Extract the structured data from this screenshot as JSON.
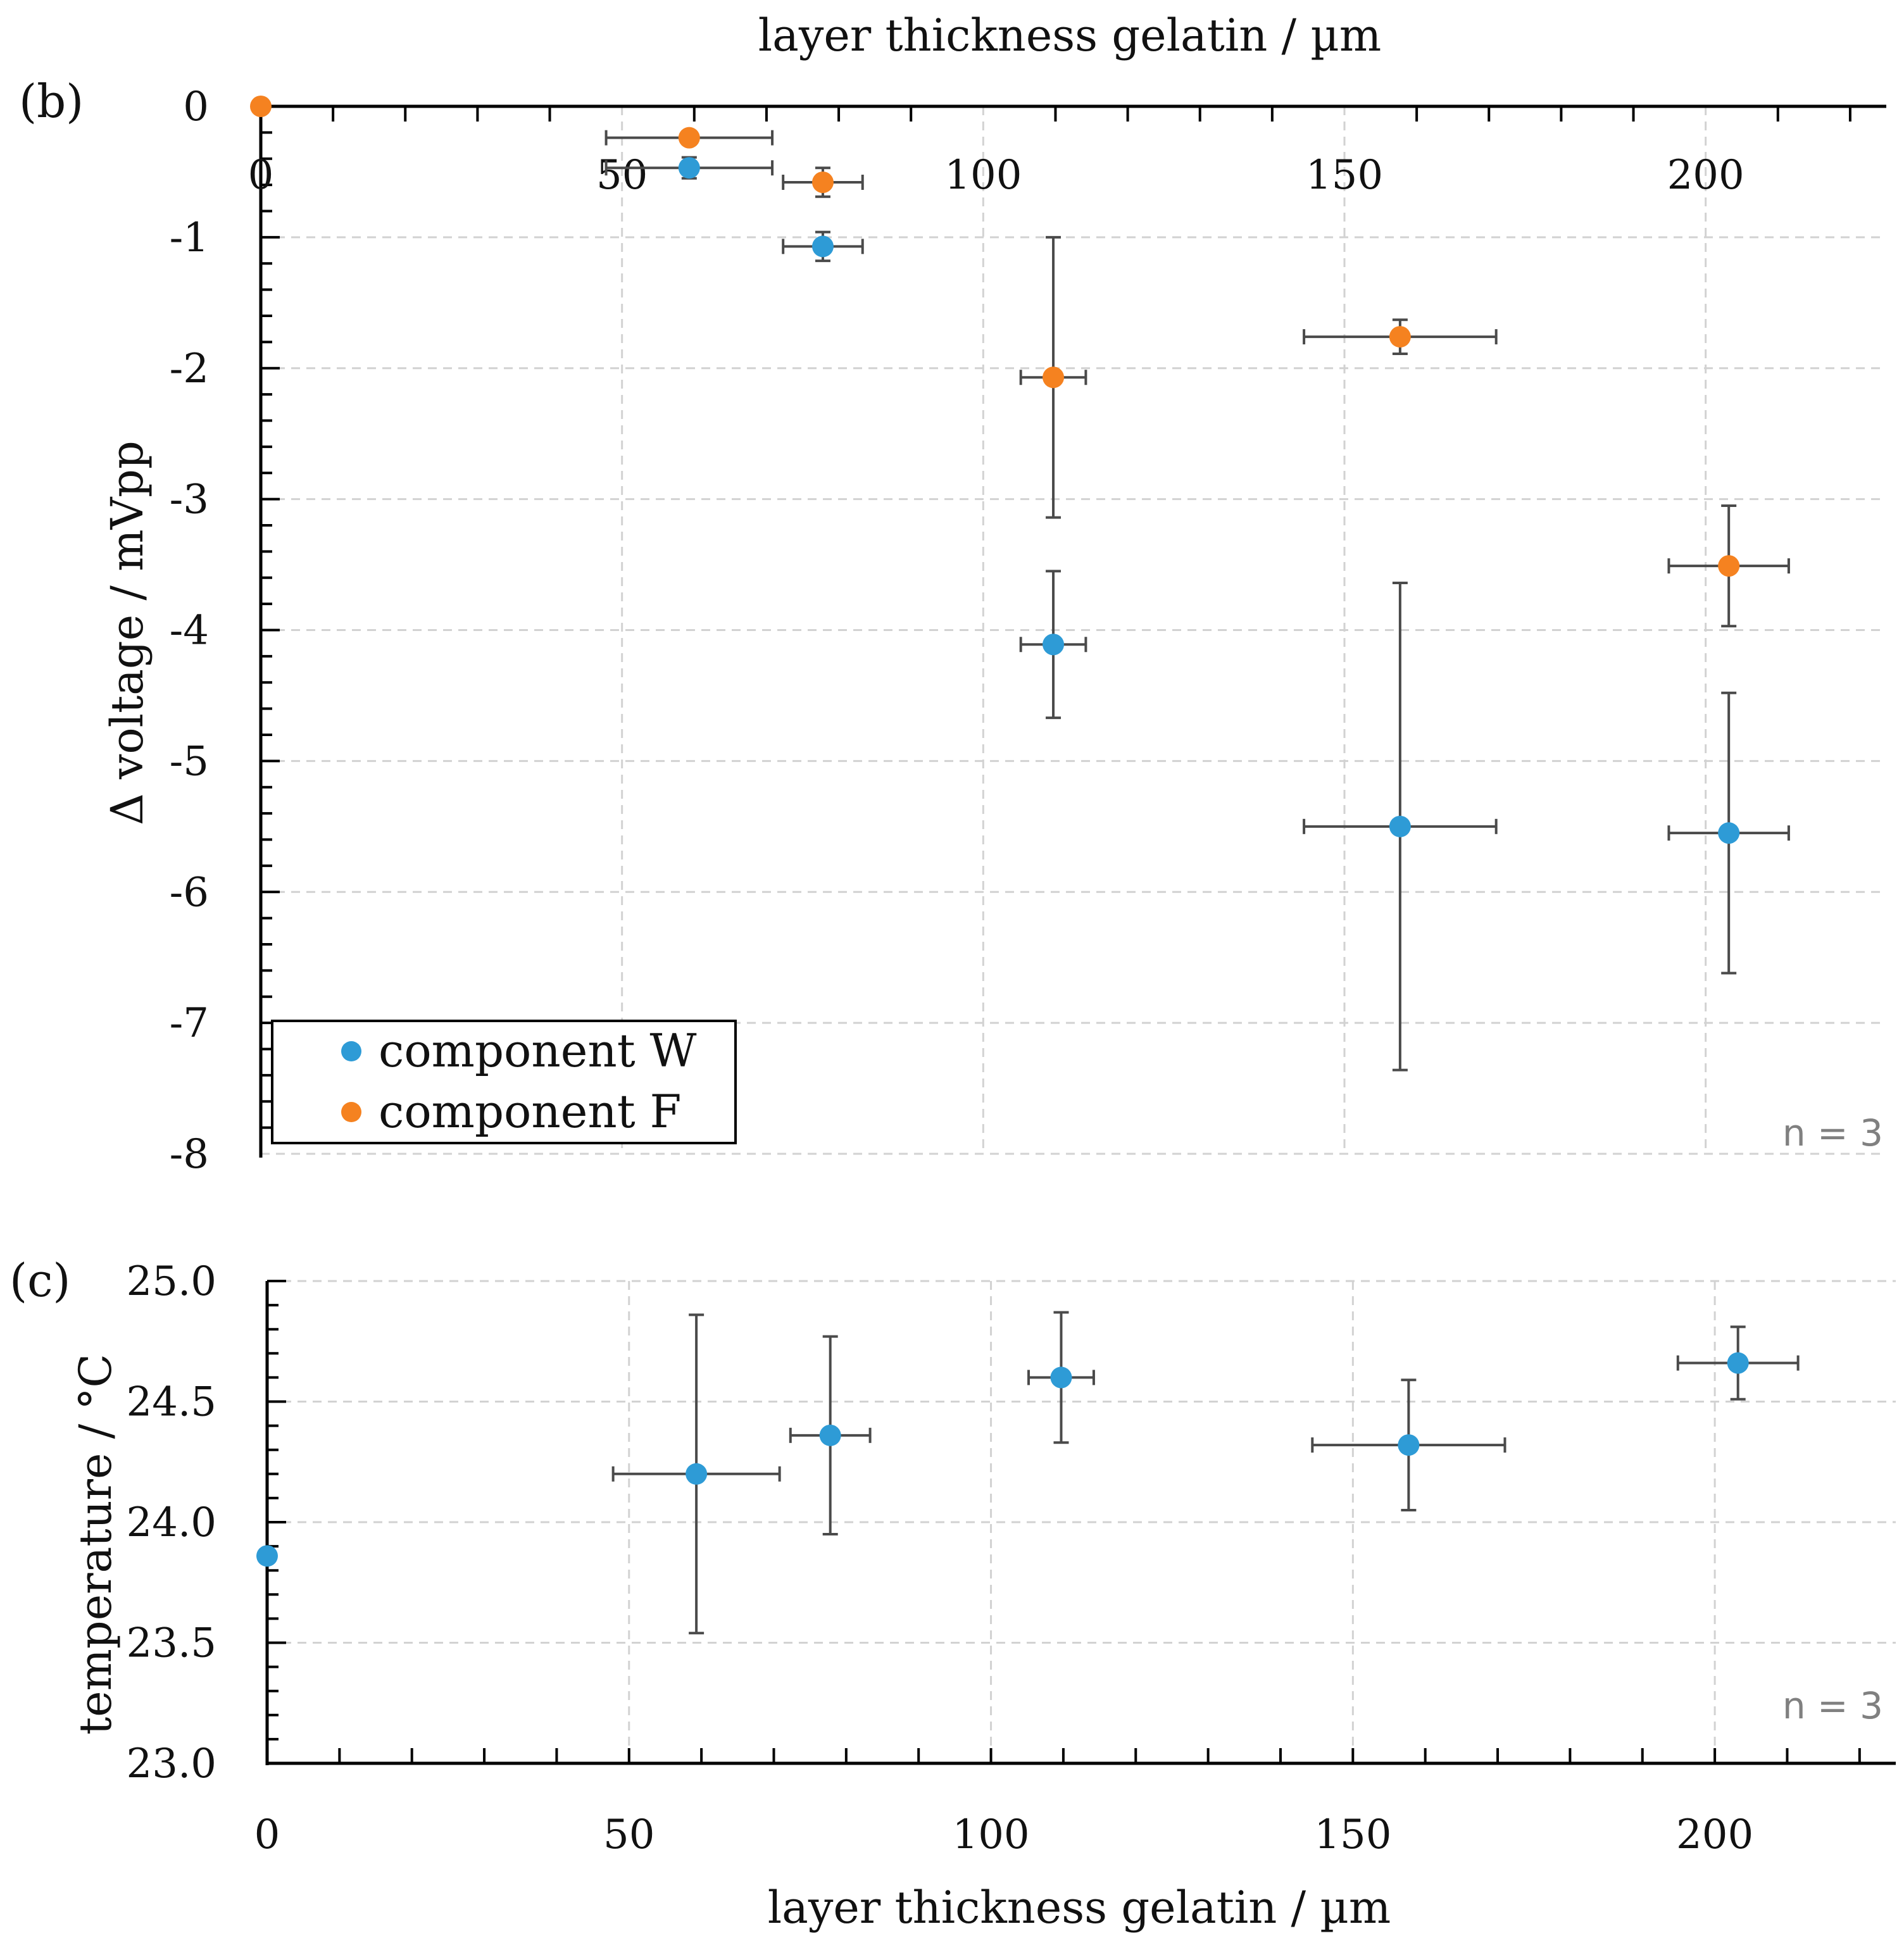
{
  "chart_data": [
    {
      "type": "scatter",
      "panel_label": "(b)",
      "title": "",
      "xlabel": "layer thickness gelatin / µm",
      "ylabel": "Δ voltage / mVpp",
      "xlim": [
        0,
        225
      ],
      "ylim": [
        -8,
        0
      ],
      "xticks": [
        "0",
        "50",
        "100",
        "150",
        "200"
      ],
      "xtick_values": [
        0,
        50,
        100,
        150,
        200
      ],
      "yticks": [
        "0",
        "-1",
        "-2",
        "-3",
        "-4",
        "-5",
        "-6",
        "-7",
        "-8"
      ],
      "ytick_values": [
        0,
        -1,
        -2,
        -3,
        -4,
        -5,
        -6,
        -7,
        -8
      ],
      "grid": true,
      "legend_position": "bottom-left",
      "annotation": "n = 3",
      "series": [
        {
          "name": "component W",
          "color": "#2e9bd6",
          "points": [
            {
              "x": 59.3,
              "y": -0.47,
              "xerr": 11.5,
              "yerr": 0.08
            },
            {
              "x": 77.8,
              "y": -1.07,
              "xerr": 5.5,
              "yerr": 0.11
            },
            {
              "x": 109.7,
              "y": -4.11,
              "xerr": 4.5,
              "yerr": 0.56
            },
            {
              "x": 157.7,
              "y": -5.5,
              "xerr": 13.3,
              "yerr": 1.86
            },
            {
              "x": 203.2,
              "y": -5.55,
              "xerr": 8.3,
              "yerr": 1.07
            }
          ]
        },
        {
          "name": "component F",
          "color": "#f58220",
          "points": [
            {
              "x": 0,
              "y": 0,
              "xerr": 0,
              "yerr": 0
            },
            {
              "x": 59.3,
              "y": -0.24,
              "xerr": 11.5,
              "yerr": 0
            },
            {
              "x": 77.8,
              "y": -0.58,
              "xerr": 5.5,
              "yerr": 0.11
            },
            {
              "x": 109.7,
              "y": -2.07,
              "xerr": 4.5,
              "yerr": 1.07
            },
            {
              "x": 157.7,
              "y": -1.76,
              "xerr": 13.3,
              "yerr": 0.13
            },
            {
              "x": 203.2,
              "y": -3.51,
              "xerr": 8.3,
              "yerr": 0.46
            }
          ]
        }
      ]
    },
    {
      "type": "scatter",
      "panel_label": "(c)",
      "title": "",
      "xlabel": "layer thickness gelatin / µm",
      "ylabel": "temperature / °C",
      "xlim": [
        0,
        225
      ],
      "ylim": [
        23.0,
        25.0
      ],
      "xticks": [
        "0",
        "50",
        "100",
        "150",
        "200"
      ],
      "xtick_values": [
        0,
        50,
        100,
        150,
        200
      ],
      "yticks": [
        "25.0",
        "24.5",
        "24.0",
        "23.5",
        "23.0"
      ],
      "ytick_values": [
        25.0,
        24.5,
        24.0,
        23.5,
        23.0
      ],
      "grid": true,
      "annotation": "n = 3",
      "series": [
        {
          "name": "temperature",
          "color": "#2e9bd6",
          "points": [
            {
              "x": 0,
              "y": 23.86,
              "xerr": 0,
              "yerr": 0
            },
            {
              "x": 59.3,
              "y": 24.2,
              "xerr": 11.5,
              "yerr": 0.66
            },
            {
              "x": 77.8,
              "y": 24.36,
              "xerr": 5.5,
              "yerr": 0.41
            },
            {
              "x": 109.7,
              "y": 24.6,
              "xerr": 4.5,
              "yerr": 0.27
            },
            {
              "x": 157.7,
              "y": 24.32,
              "xerr": 13.3,
              "yerr": 0.27
            },
            {
              "x": 203.2,
              "y": 24.66,
              "xerr": 8.3,
              "yerr": 0.15
            }
          ]
        }
      ]
    }
  ]
}
